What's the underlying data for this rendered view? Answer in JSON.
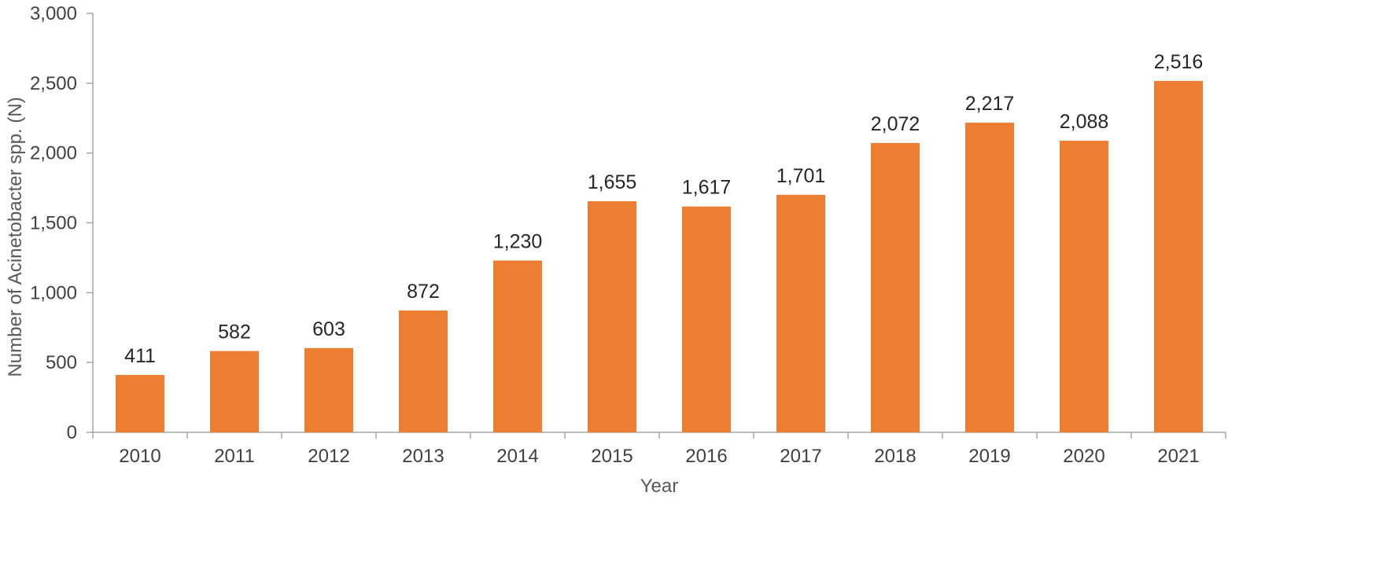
{
  "chart_data": {
    "type": "bar",
    "categories": [
      "2010",
      "2011",
      "2012",
      "2013",
      "2014",
      "2015",
      "2016",
      "2017",
      "2018",
      "2019",
      "2020",
      "2021"
    ],
    "values": [
      411,
      582,
      603,
      872,
      1230,
      1655,
      1617,
      1701,
      2072,
      2217,
      2088,
      2516
    ],
    "value_labels": [
      "411",
      "582",
      "603",
      "872",
      "1,230",
      "1,655",
      "1,617",
      "1,701",
      "2,072",
      "2,217",
      "2,088",
      "2,516"
    ],
    "title": "",
    "xlabel": "Year",
    "ylabel": "Number of Acinetobacter spp. (N)",
    "ylim": [
      0,
      3000
    ],
    "yticks": [
      0,
      500,
      1000,
      1500,
      2000,
      2500,
      3000
    ],
    "ytick_labels": [
      "0",
      "500",
      "1,000",
      "1,500",
      "2,000",
      "2,500",
      "3,000"
    ],
    "grid": false,
    "legend": "none",
    "bar_color": "#ed7d31"
  }
}
